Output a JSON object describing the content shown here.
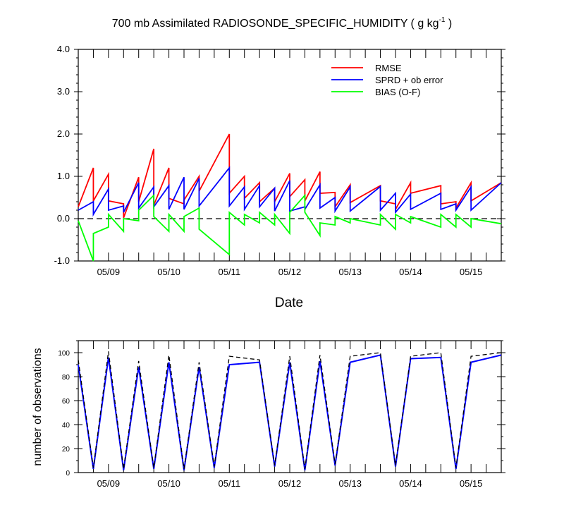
{
  "chart_data": [
    {
      "type": "line",
      "title": "700 mb Assimilated RADIOSONDE_SPECIFIC_HUMIDITY ( g kg",
      "title_exp": "-1",
      "title_end": " )",
      "xlabel": "Date",
      "ylabel": "",
      "ylim": [
        -1.0,
        4.0
      ],
      "xlim": [
        0,
        14
      ],
      "yticks": [
        -1.0,
        0.0,
        1.0,
        2.0,
        3.0,
        4.0
      ],
      "ytick_labels": [
        "-1.0",
        "0.0",
        "1.0",
        "2.0",
        "3.0",
        "4.0"
      ],
      "xticks": [
        1,
        3,
        5,
        7,
        9,
        11,
        13
      ],
      "xtick_labels": [
        "05/09",
        "05/10",
        "05/11",
        "05/12",
        "05/13",
        "05/14",
        "05/15"
      ],
      "zero_line": true,
      "colors": {
        "rmse": "#ff0000",
        "sprd": "#0000ff",
        "bias": "#00ff00",
        "zero": "#000000"
      },
      "legend": [
        "RMSE",
        "SPRD + ob error",
        "BIAS (O-F)"
      ],
      "x": [
        0,
        0.5,
        0.5,
        1,
        1,
        1.5,
        1.5,
        2,
        2,
        2.5,
        2.5,
        3,
        3,
        3.5,
        3.5,
        4,
        4,
        5,
        5,
        5.5,
        5.5,
        6,
        6,
        6.5,
        6.5,
        7,
        7,
        7.5,
        7.5,
        8,
        8,
        8.5,
        8.5,
        9,
        9,
        10,
        10,
        10.5,
        10.5,
        11,
        11,
        12,
        12,
        12.5,
        12.5,
        13,
        13,
        14
      ],
      "series": [
        {
          "name": "RMSE",
          "values": [
            0.28,
            1.2,
            0.42,
            1.05,
            0.42,
            0.35,
            0.02,
            0.98,
            0.4,
            1.65,
            0.32,
            1.2,
            0.48,
            0.35,
            0.44,
            1.0,
            0.65,
            2.0,
            0.6,
            1.0,
            0.48,
            0.85,
            0.4,
            0.72,
            0.4,
            1.07,
            0.52,
            0.92,
            0.42,
            1.11,
            0.6,
            0.62,
            0.28,
            0.8,
            0.38,
            0.78,
            0.42,
            0.35,
            0.22,
            0.85,
            0.6,
            0.78,
            0.35,
            0.4,
            0.25,
            0.85,
            0.42,
            0.85
          ]
        },
        {
          "name": "SPRD + ob error",
          "values": [
            0.2,
            0.4,
            0.1,
            0.7,
            0.2,
            0.3,
            0.15,
            0.85,
            0.25,
            0.75,
            0.28,
            0.78,
            0.22,
            0.98,
            0.22,
            0.95,
            0.3,
            1.2,
            0.3,
            0.75,
            0.22,
            0.78,
            0.28,
            0.72,
            0.18,
            0.9,
            0.18,
            0.28,
            0.22,
            0.8,
            0.25,
            0.5,
            0.18,
            0.75,
            0.18,
            0.76,
            0.2,
            0.6,
            0.15,
            0.58,
            0.22,
            0.6,
            0.22,
            0.35,
            0.2,
            0.75,
            0.2,
            0.85
          ]
        },
        {
          "name": "BIAS (O-F)",
          "values": [
            -0.05,
            -1.0,
            -0.35,
            -0.2,
            0.1,
            -0.3,
            0.0,
            -0.05,
            0.2,
            0.55,
            0.05,
            -0.3,
            0.1,
            -0.3,
            0.05,
            0.25,
            -0.25,
            -0.85,
            0.15,
            -0.15,
            0.1,
            -0.1,
            0.15,
            -0.15,
            0.1,
            -0.35,
            0.15,
            0.55,
            0.15,
            -0.4,
            -0.1,
            -0.15,
            0.05,
            -0.1,
            0.0,
            -0.15,
            0.1,
            -0.25,
            0.1,
            -0.1,
            0.05,
            -0.2,
            0.1,
            -0.2,
            0.1,
            -0.2,
            0.0,
            -0.12
          ]
        }
      ]
    },
    {
      "type": "line",
      "title": "",
      "xlabel": "",
      "ylabel": "number of observations",
      "ylim": [
        0,
        110
      ],
      "xlim": [
        0,
        14
      ],
      "yticks": [
        0,
        20,
        40,
        60,
        80,
        100
      ],
      "ytick_labels": [
        "0",
        "20",
        "40",
        "60",
        "80",
        "100"
      ],
      "xticks": [
        1,
        3,
        5,
        7,
        9,
        11,
        13
      ],
      "xtick_labels": [
        "05/09",
        "05/10",
        "05/11",
        "05/12",
        "05/13",
        "05/14",
        "05/15"
      ],
      "colors": {
        "assimilated": "#0000ff",
        "possible": "#000000"
      },
      "series": [
        {
          "name": "assimilated",
          "x": [
            0,
            0.5,
            1,
            1.5,
            2,
            2.5,
            3,
            3.5,
            4,
            4.5,
            5,
            6,
            6.5,
            7,
            7.5,
            8,
            8.5,
            9,
            10,
            10.5,
            11,
            12,
            12.5,
            13,
            14
          ],
          "values": [
            90,
            3,
            96,
            2,
            88,
            3,
            92,
            2,
            88,
            4,
            90,
            92,
            5,
            92,
            2,
            93,
            6,
            92,
            98,
            5,
            95,
            96,
            3,
            92,
            98
          ]
        },
        {
          "name": "possible",
          "x": [
            0,
            0.5,
            1,
            1.5,
            2,
            2.5,
            3,
            3.5,
            4,
            4.5,
            5,
            6,
            6.5,
            7,
            7.5,
            8,
            8.5,
            9,
            10,
            10.5,
            11,
            12,
            12.5,
            13,
            14
          ],
          "values": [
            94,
            4,
            101,
            3,
            93,
            4,
            98,
            3,
            92,
            5,
            97,
            94,
            6,
            97,
            3,
            98,
            7,
            97,
            100,
            6,
            97,
            100,
            4,
            97,
            100
          ]
        }
      ]
    }
  ]
}
